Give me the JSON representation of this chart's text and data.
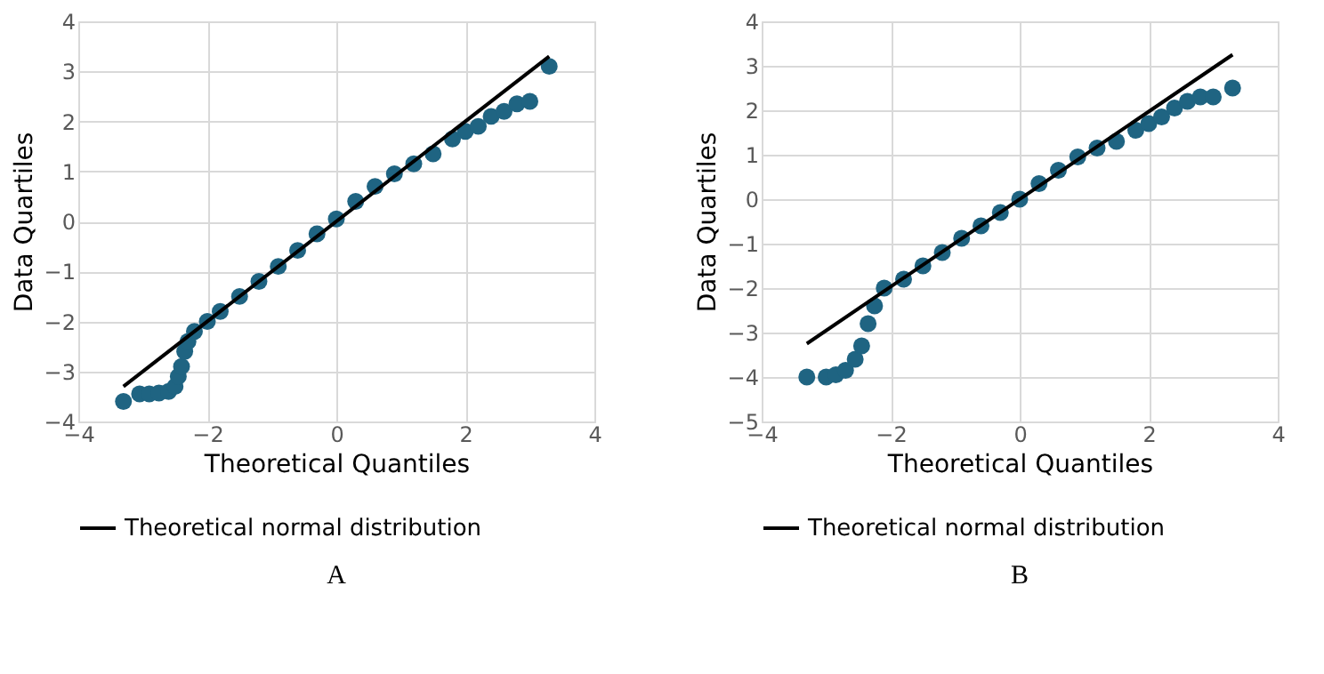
{
  "chart_data": [
    {
      "type": "scatter",
      "xlabel": "Theoretical Quantiles",
      "ylabel": "Data Quartiles",
      "xlim": [
        -4,
        4
      ],
      "ylim": [
        -4,
        4
      ],
      "xticks": [
        -4,
        -2,
        0,
        2,
        4
      ],
      "yticks": [
        -4,
        -3,
        -2,
        -1,
        0,
        1,
        2,
        3,
        4
      ],
      "grid": true,
      "legend": "bottom",
      "annotations": [
        "A"
      ],
      "series": [
        {
          "type": "scatter",
          "marker": "circle",
          "color": "#1f6482",
          "x": [
            -3.3,
            -3.05,
            -2.9,
            -2.75,
            -2.6,
            -2.5,
            -2.45,
            -2.4,
            -2.35,
            -2.3,
            -2.2,
            -2.0,
            -1.8,
            -1.5,
            -1.2,
            -0.9,
            -0.6,
            -0.3,
            0,
            0.3,
            0.6,
            0.9,
            1.2,
            1.5,
            1.8,
            2.0,
            2.2,
            2.4,
            2.6,
            2.8,
            3.0,
            3.3
          ],
          "values": [
            -3.6,
            -3.45,
            -3.45,
            -3.43,
            -3.4,
            -3.3,
            -3.1,
            -2.9,
            -2.6,
            -2.4,
            -2.2,
            -2.0,
            -1.8,
            -1.5,
            -1.2,
            -0.9,
            -0.58,
            -0.25,
            0.05,
            0.4,
            0.7,
            0.95,
            1.15,
            1.35,
            1.65,
            1.8,
            1.9,
            2.1,
            2.2,
            2.35,
            2.4,
            3.1
          ]
        },
        {
          "type": "line",
          "name": "Theoretical normal distribution",
          "color": "#000000",
          "line_style": "solid",
          "x": [
            -3.3,
            3.3
          ],
          "values": [
            -3.3,
            3.3
          ]
        }
      ]
    },
    {
      "type": "scatter",
      "xlabel": "Theoretical Quantiles",
      "ylabel": "Data Quartiles",
      "xlim": [
        -4,
        4
      ],
      "ylim": [
        -5,
        4
      ],
      "xticks": [
        -4,
        -2,
        0,
        2,
        4
      ],
      "yticks": [
        -5,
        -4,
        -3,
        -2,
        -1,
        0,
        1,
        2,
        3,
        4
      ],
      "grid": true,
      "legend": "bottom",
      "annotations": [
        "B"
      ],
      "series": [
        {
          "type": "scatter",
          "marker": "circle",
          "color": "#1f6482",
          "x": [
            -3.3,
            -3.0,
            -2.85,
            -2.7,
            -2.55,
            -2.45,
            -2.35,
            -2.25,
            -2.1,
            -1.8,
            -1.5,
            -1.2,
            -0.9,
            -0.6,
            -0.3,
            0,
            0.3,
            0.6,
            0.9,
            1.2,
            1.5,
            1.8,
            2.0,
            2.2,
            2.4,
            2.6,
            2.8,
            3.0,
            3.3
          ],
          "values": [
            -4.0,
            -4.0,
            -3.95,
            -3.85,
            -3.6,
            -3.3,
            -2.8,
            -2.4,
            -2.0,
            -1.8,
            -1.5,
            -1.2,
            -0.88,
            -0.6,
            -0.3,
            0.0,
            0.35,
            0.65,
            0.95,
            1.15,
            1.3,
            1.55,
            1.7,
            1.85,
            2.05,
            2.2,
            2.3,
            2.3,
            2.5
          ]
        },
        {
          "type": "line",
          "name": "Theoretical normal distribution",
          "color": "#000000",
          "line_style": "solid",
          "x": [
            -3.3,
            3.3
          ],
          "values": [
            -3.25,
            3.25
          ]
        }
      ]
    }
  ]
}
